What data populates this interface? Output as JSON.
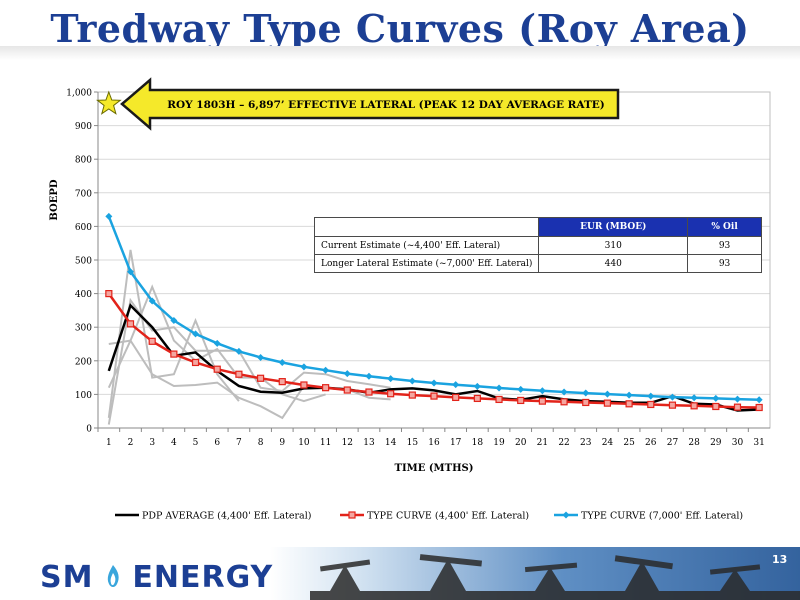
{
  "title": "Tredway Type Curves (Roy Area)",
  "callout": "ROY 1803H – 6,897’  EFFECTIVE LATERAL (PEAK 12 DAY AVERAGE RATE)",
  "table": {
    "headers": [
      "",
      "EUR (MBOE)",
      "% Oil"
    ],
    "rows": [
      [
        "Current Estimate (~4,400' Eff. Lateral)",
        "310",
        "93"
      ],
      [
        "Longer Lateral Estimate (~7,000' Eff. Lateral)",
        "440",
        "93"
      ]
    ]
  },
  "chart_data": {
    "type": "line",
    "xlabel": "TIME (MTHS)",
    "ylabel": "BOEPD",
    "ylim": [
      0,
      1000
    ],
    "yticks": [
      0,
      100,
      200,
      300,
      400,
      500,
      600,
      700,
      800,
      900,
      1000
    ],
    "ytick_labels": [
      "0",
      "100",
      "200",
      "300",
      "400",
      "500",
      "600",
      "700",
      "800",
      "900",
      "1,000"
    ],
    "x": [
      1,
      2,
      3,
      4,
      5,
      6,
      7,
      8,
      9,
      10,
      11,
      12,
      13,
      14,
      15,
      16,
      17,
      18,
      19,
      20,
      21,
      22,
      23,
      24,
      25,
      26,
      27,
      28,
      29,
      30,
      31
    ],
    "grid": "horizontal",
    "legend_position": "bottom",
    "highlight_point": {
      "x": 1,
      "y": 1000,
      "marker": "star",
      "color": "#f5e92a"
    },
    "series": [
      {
        "name": "PDP AVERAGE (4,400' Eff. Lateral)",
        "color": "#000000",
        "marker": "none",
        "values": [
          170,
          365,
          300,
          215,
          225,
          170,
          125,
          108,
          105,
          118,
          120,
          115,
          105,
          115,
          118,
          112,
          100,
          110,
          88,
          84,
          95,
          85,
          80,
          78,
          75,
          75,
          95,
          72,
          70,
          52,
          55
        ]
      },
      {
        "name": "TYPE CURVE (4,400' Eff. Lateral)",
        "color": "#e2231a",
        "marker": "square",
        "values": [
          400,
          310,
          258,
          220,
          195,
          175,
          160,
          148,
          138,
          128,
          120,
          113,
          107,
          102,
          98,
          95,
          91,
          88,
          85,
          82,
          80,
          78,
          76,
          74,
          72,
          70,
          68,
          66,
          64,
          62,
          61
        ]
      },
      {
        "name": "TYPE CURVE (7,000' Eff. Lateral)",
        "color": "#1aa3e0",
        "marker": "diamond",
        "values": [
          630,
          465,
          378,
          320,
          280,
          252,
          228,
          210,
          195,
          182,
          172,
          162,
          154,
          147,
          140,
          134,
          129,
          124,
          119,
          115,
          111,
          107,
          104,
          101,
          98,
          95,
          92,
          90,
          88,
          86,
          84
        ]
      }
    ],
    "background_wells": [
      {
        "color": "#bdbdbd",
        "values": [
          30,
          530,
          150,
          160,
          320,
          160,
          80
        ]
      },
      {
        "color": "#bdbdbd",
        "values": [
          250,
          260,
          160,
          125,
          128,
          135,
          90,
          65,
          30,
          125
        ]
      },
      {
        "color": "#bdbdbd",
        "values": [
          120,
          260,
          420,
          260,
          200,
          235,
          150,
          150,
          100,
          80,
          100
        ]
      },
      {
        "color": "#bdbdbd",
        "values": [
          10,
          380,
          290,
          300,
          230,
          230,
          230,
          120,
          110,
          165,
          160,
          140,
          130,
          120
        ]
      },
      {
        "color": "#bdbdbd",
        "values": [
          null,
          null,
          null,
          null,
          null,
          null,
          null,
          null,
          null,
          null,
          null,
          115,
          90,
          85
        ]
      }
    ]
  },
  "footer": {
    "logo_sm": "SM",
    "logo_energy": "ENERGY",
    "page_number": "13"
  },
  "colors": {
    "title": "#1c3f94",
    "table_header": "#1a31b0",
    "callout_arrow": "#f5e92a"
  }
}
